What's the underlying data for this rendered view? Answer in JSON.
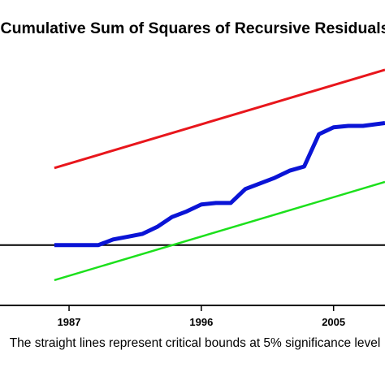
{
  "chart_data": {
    "type": "line",
    "title": "Cumulative Sum of Squares of Recursive Residuals",
    "note": "The straight lines represent critical bounds at 5% significance level",
    "xlabel": "",
    "ylabel": "",
    "x_ticks": [
      1987,
      1996,
      2005
    ],
    "xlim": [
      1982.3,
      2008.5
    ],
    "ylim": [
      -0.43,
      1.4
    ],
    "reference_line": 0,
    "grid": false,
    "legend": "none",
    "series": [
      {
        "color": "#e8161c",
        "x": [
          1986,
          2008.5
        ],
        "y": [
          0.55,
          1.25
        ]
      },
      {
        "color": "#0a14d6",
        "x": [
          1986,
          1987,
          1988,
          1989,
          1990,
          1991,
          1992,
          1993,
          1994,
          1995,
          1996,
          1997,
          1998,
          1999,
          2000,
          2001,
          2002,
          2003,
          2004,
          2005,
          2006,
          2007,
          2008.5
        ],
        "y": [
          0.0,
          0.0,
          0.0,
          0.0,
          0.04,
          0.06,
          0.08,
          0.13,
          0.2,
          0.24,
          0.29,
          0.3,
          0.3,
          0.4,
          0.44,
          0.48,
          0.53,
          0.56,
          0.79,
          0.84,
          0.85,
          0.85,
          0.87
        ]
      },
      {
        "color": "#1ce01c",
        "x": [
          1986,
          2008.5
        ],
        "y": [
          -0.25,
          0.45
        ]
      }
    ]
  }
}
